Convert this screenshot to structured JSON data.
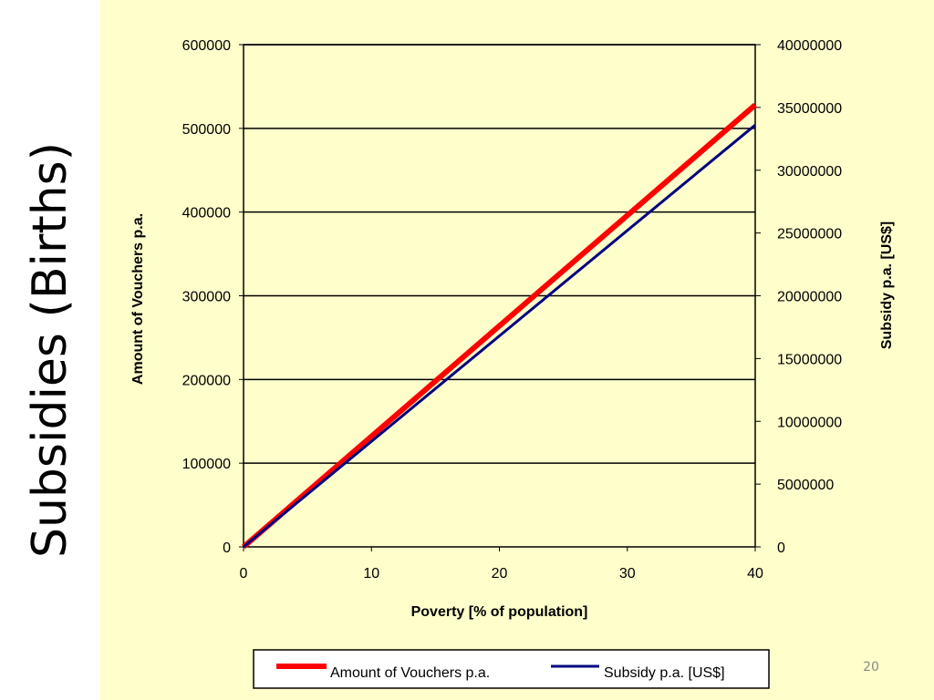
{
  "slide": {
    "title": "Subsidies (Births)",
    "page_number": "20",
    "background_color": "#ffffcc"
  },
  "chart_data": {
    "type": "line",
    "title": "",
    "xlabel": "Poverty  [% of population]",
    "ylabel": "Amount of Vouchers p.a.",
    "y2label": "Subsidy p.a. [US$]",
    "xlim": [
      0,
      40
    ],
    "ylim": [
      0,
      600000
    ],
    "y2lim": [
      0,
      40000000
    ],
    "x_ticks": [
      "0",
      "10",
      "20",
      "30",
      "40"
    ],
    "y_ticks": [
      "0",
      "100000",
      "200000",
      "300000",
      "400000",
      "500000",
      "600000"
    ],
    "y2_ticks": [
      "0",
      "5000000",
      "10000000",
      "15000000",
      "20000000",
      "25000000",
      "30000000",
      "35000000",
      "40000000"
    ],
    "grid": true,
    "legend_position": "bottom",
    "series": [
      {
        "name": "Amount of Vouchers p.a.",
        "axis": "left",
        "color": "#ff0000",
        "x": [
          0,
          40
        ],
        "y": [
          0,
          528000
        ]
      },
      {
        "name": "Subsidy p.a. [US$]",
        "axis": "right",
        "color": "#000080",
        "x": [
          0,
          40
        ],
        "y": [
          0,
          33600000
        ]
      }
    ]
  }
}
